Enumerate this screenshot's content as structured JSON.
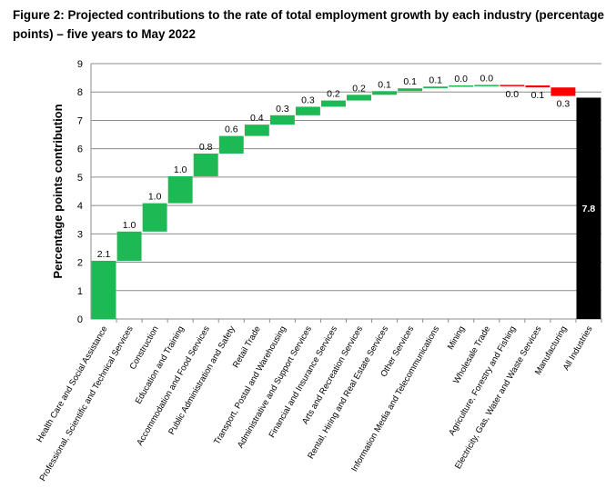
{
  "figure": {
    "title": "Figure 2: Projected contributions to the rate of total employment growth by each industry (percentage points) – five years to May 2022"
  },
  "chart_data": {
    "type": "bar",
    "subtype": "waterfall",
    "title": "Figure 2: Projected contributions to the rate of total employment growth by each industry (percentage points) – five years to May 2022",
    "xlabel": "",
    "ylabel": "Percentage points contribution",
    "ylim": [
      0,
      9
    ],
    "yticks": [
      0,
      1,
      2,
      3,
      4,
      5,
      6,
      7,
      8,
      9
    ],
    "grid": true,
    "legend": "none",
    "colors": {
      "positive": "#1db954",
      "negative": "#ff0000",
      "total": "#000000"
    },
    "categories": [
      "Health Care and Social Assistance",
      "Professional, Scientific and Technical Services",
      "Construction",
      "Education and Training",
      "Accommodation and Food Services",
      "Public Administration and Safety",
      "Retail Trade",
      "Transport, Postal and Warehousing",
      "Administrative and Support Services",
      "Financial and Insurance Services",
      "Arts and Recreation Services",
      "Rental, Hiring and Real Estate Services",
      "Other Services",
      "Information Media and Telecommunications",
      "Mining",
      "Wholesale Trade",
      "Agriculture, Forestry and Fishing",
      "Electricity, Gas, Water and Waste Services",
      "Manufacturing",
      "All Industries"
    ],
    "values": [
      2.05,
      1.03,
      1.0,
      0.95,
      0.8,
      0.62,
      0.4,
      0.33,
      0.3,
      0.22,
      0.2,
      0.13,
      0.1,
      0.06,
      0.04,
      0.02,
      -0.02,
      -0.07,
      -0.3,
      7.8
    ],
    "labels": [
      "2.1",
      "1.0",
      "1.0",
      "1.0",
      "0.8",
      "0.6",
      "0.4",
      "0.3",
      "0.3",
      "0.2",
      "0.2",
      "0.1",
      "0.1",
      "0.1",
      "0.0",
      "0.0",
      "0.0",
      "0.1",
      "0.3",
      "7.8"
    ],
    "total_index": 19
  }
}
